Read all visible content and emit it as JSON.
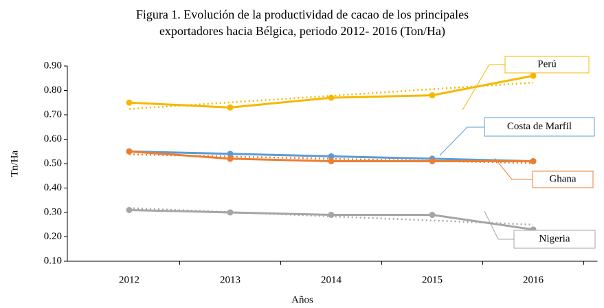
{
  "chart_data": {
    "type": "line",
    "title": [
      "Figura 1. Evolución de la productividad de cacao de los principales",
      "exportadores hacia Bélgica, periodo 2012- 2016 (Ton/Ha)"
    ],
    "xlabel": "Años",
    "ylabel": "Tn/Ha",
    "categories": [
      "2012",
      "2013",
      "2014",
      "2015",
      "2016"
    ],
    "series": [
      {
        "name": "Perú",
        "color": "#f5b800",
        "values": [
          0.75,
          0.73,
          0.77,
          0.78,
          0.86
        ]
      },
      {
        "name": "Costa de Marfil",
        "color": "#5b9bd5",
        "values": [
          0.55,
          0.54,
          0.53,
          0.52,
          0.51
        ]
      },
      {
        "name": "Ghana",
        "color": "#ed7d31",
        "values": [
          0.55,
          0.52,
          0.51,
          0.51,
          0.51
        ]
      },
      {
        "name": "Nigeria",
        "color": "#a5a5a5",
        "values": [
          0.31,
          0.3,
          0.29,
          0.29,
          0.23
        ]
      }
    ],
    "ylim": [
      0.1,
      0.9
    ],
    "yticks": [
      {
        "value": 0.1,
        "label": "0.10"
      },
      {
        "value": 0.2,
        "label": "0.20"
      },
      {
        "value": 0.3,
        "label": "0.30"
      },
      {
        "value": 0.4,
        "label": "0.40"
      },
      {
        "value": 0.5,
        "label": "0.50"
      },
      {
        "value": 0.6,
        "label": "0.60"
      },
      {
        "value": 0.7,
        "label": "0.70"
      },
      {
        "value": 0.8,
        "label": "0.80"
      },
      {
        "value": 0.9,
        "label": "0.90"
      }
    ],
    "trendline": true,
    "grid": false
  }
}
